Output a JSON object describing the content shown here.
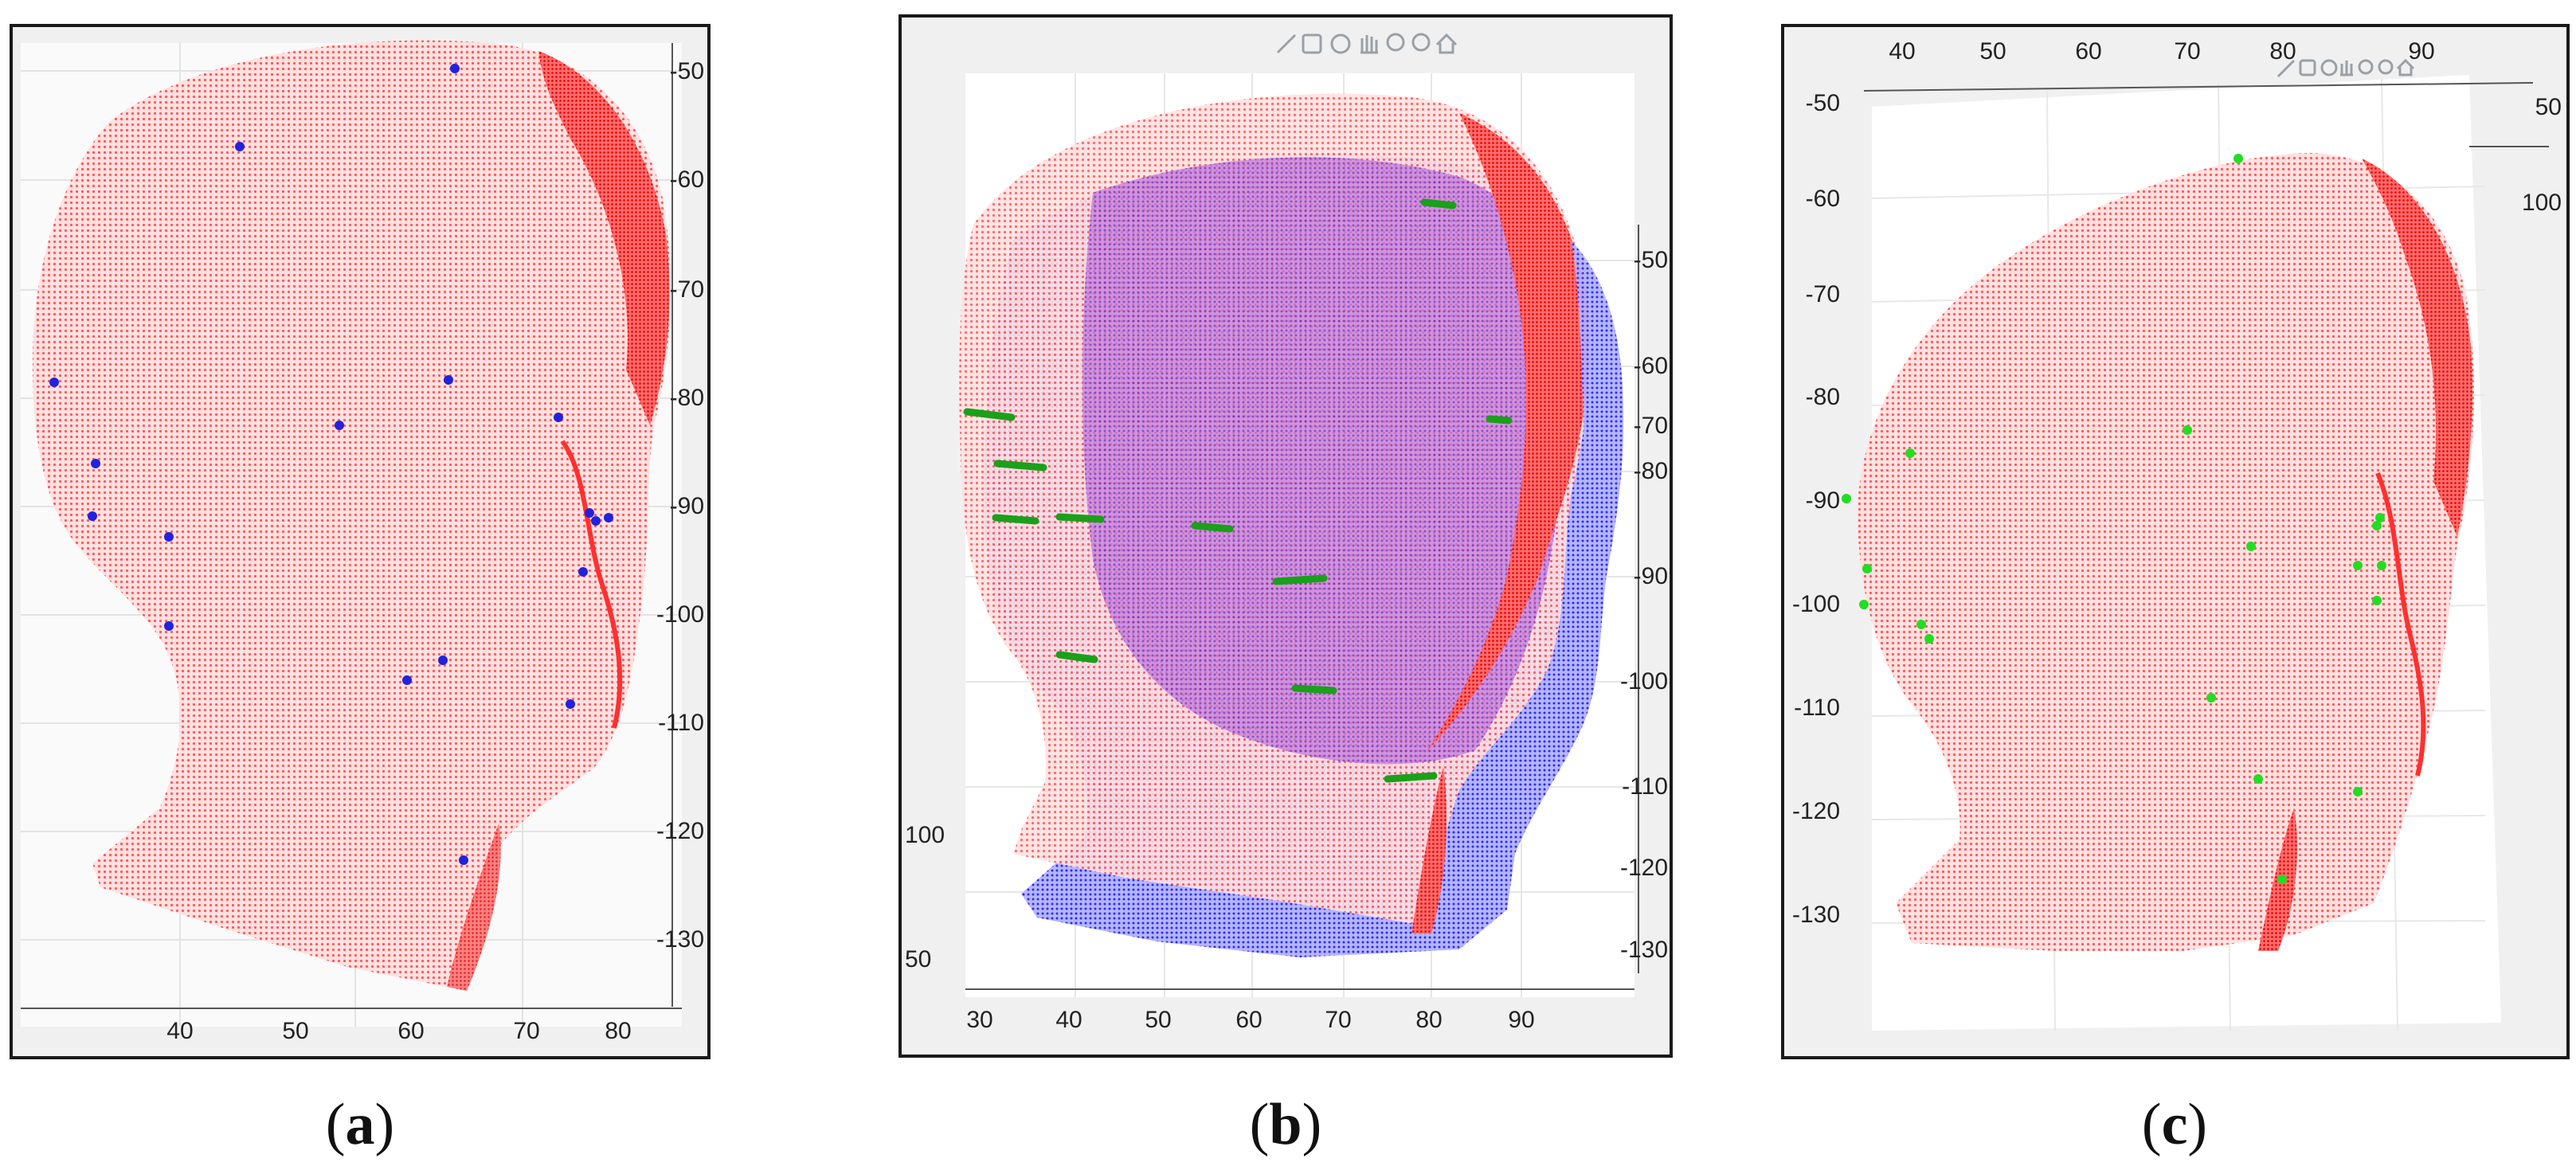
{
  "panels": [
    {
      "caption": "a",
      "colors": {
        "background": "#f0f0f0",
        "surface": "#fafafa",
        "head": "#ff2b2b",
        "landmark": "#2222dd"
      },
      "y_ticks": [
        "-50",
        "-60",
        "-70",
        "-80",
        "-90",
        "-100",
        "-110",
        "-120",
        "-130"
      ],
      "x_ticks": [
        "40",
        "50",
        "60",
        "70",
        "80"
      ]
    },
    {
      "caption": "b",
      "colors": {
        "background": "#f0f0f0",
        "surface": "#ffffff",
        "head": "#ff2b2b",
        "overlay": "#2a2aff",
        "landmark": "#22dd22"
      },
      "y_ticks": [
        "-50",
        "-60",
        "-70",
        "-80",
        "-90",
        "-100",
        "-110",
        "-120",
        "-130"
      ],
      "left_ticks": [
        "100",
        "50"
      ],
      "x_ticks": [
        "30",
        "40",
        "50",
        "60",
        "70",
        "80",
        "90"
      ],
      "toolbar_icons": [
        "brush-icon",
        "data-cursor-icon",
        "rotate-3d-icon",
        "pan-icon",
        "zoom-in-icon",
        "zoom-out-icon",
        "home-icon"
      ]
    },
    {
      "caption": "c",
      "colors": {
        "background": "#f0f0f0",
        "surface": "#ffffff",
        "head": "#ff2b2b",
        "landmark": "#22dd22"
      },
      "top_ticks": [
        "40",
        "50",
        "60",
        "70",
        "80",
        "90"
      ],
      "y_ticks": [
        "-50",
        "-60",
        "-70",
        "-80",
        "-90",
        "-100",
        "-110",
        "-120",
        "-130"
      ],
      "right_ticks": [
        "50",
        "100"
      ],
      "toolbar_icons": [
        "brush-icon",
        "data-cursor-icon",
        "rotate-3d-icon",
        "pan-icon",
        "zoom-in-icon",
        "zoom-out-icon",
        "home-icon"
      ]
    }
  ]
}
